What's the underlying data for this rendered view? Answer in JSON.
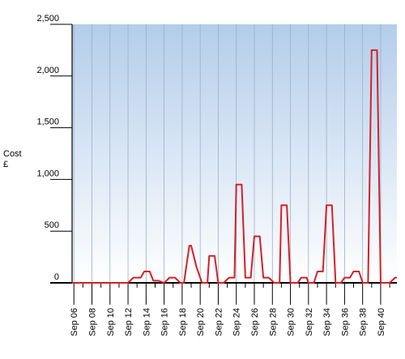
{
  "chart_data": {
    "type": "line",
    "ylabel": [
      "Cost",
      "£"
    ],
    "ylim": [
      0,
      2500
    ],
    "y_ticks": [
      {
        "value": 0,
        "label": "0"
      },
      {
        "value": 500,
        "label": "500"
      },
      {
        "value": 1000,
        "label": "1,000"
      },
      {
        "value": 1500,
        "label": "1,500"
      },
      {
        "value": 2000,
        "label": "2,000"
      },
      {
        "value": 2500,
        "label": "2,500"
      }
    ],
    "x_tick_labels": [
      "Sep 06",
      "Sep 08",
      "Sep 10",
      "Sep 12",
      "Sep 14",
      "Sep 16",
      "Sep 18",
      "Sep 20",
      "Sep 22",
      "Sep 24",
      "Sep 26",
      "Sep 28",
      "Sep 30",
      "Sep 32",
      "Sep 34",
      "Sep 36",
      "Sep 38",
      "Sep 40"
    ],
    "x_tick_positions": [
      6,
      8,
      10,
      12,
      14,
      16,
      18,
      20,
      22,
      24,
      26,
      28,
      30,
      32,
      34,
      36,
      38,
      40
    ],
    "xlim": [
      5.8,
      41.8
    ],
    "grid": "vertical",
    "background": "gradient",
    "colors": {
      "line": "#d42027",
      "plot_top": "#b3cdea",
      "plot_bottom": "#ffffff",
      "grid": "#9ab0c8",
      "axis": "#000000"
    },
    "series": [
      {
        "x": [
          5.8,
          12.0,
          12.6,
          13.4,
          13.8,
          14.4,
          14.8,
          15.4,
          16.0,
          16.6,
          17.2,
          17.8,
          18.2,
          18.8,
          19.0,
          19.6,
          20.2,
          20.8,
          21.0,
          21.6,
          22.0,
          22.6,
          23.2,
          23.8,
          24.0,
          24.6,
          25.0,
          25.6,
          26.0,
          26.6,
          27.0,
          27.6,
          28.2,
          28.8,
          29.0,
          29.6,
          30.0,
          30.8,
          31.2,
          31.8,
          32.0,
          32.6,
          33.0,
          33.6,
          34.0,
          34.6,
          35.0,
          35.6,
          36.0,
          36.6,
          37.0,
          37.6,
          38.0,
          38.6,
          39.0,
          39.6,
          40.0,
          41.0,
          41.6,
          41.8
        ],
        "y": [
          0,
          0,
          50,
          50,
          110,
          110,
          20,
          20,
          0,
          50,
          50,
          0,
          0,
          360,
          360,
          150,
          0,
          0,
          260,
          260,
          0,
          0,
          50,
          50,
          950,
          950,
          50,
          50,
          450,
          450,
          50,
          50,
          0,
          0,
          750,
          750,
          0,
          0,
          50,
          50,
          0,
          0,
          110,
          110,
          750,
          750,
          0,
          0,
          50,
          50,
          110,
          110,
          0,
          0,
          2250,
          2250,
          0,
          0,
          50,
          50
        ]
      }
    ]
  }
}
